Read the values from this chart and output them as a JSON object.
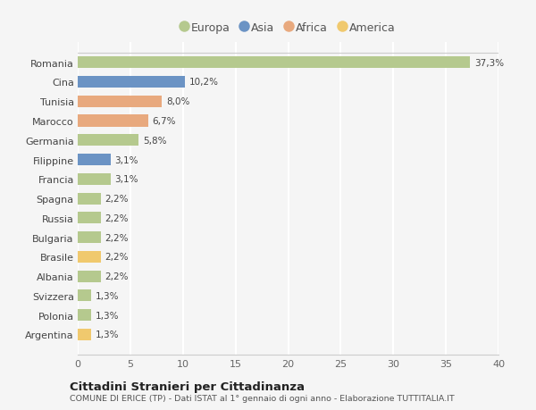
{
  "categories": [
    "Romania",
    "Cina",
    "Tunisia",
    "Marocco",
    "Germania",
    "Filippine",
    "Francia",
    "Spagna",
    "Russia",
    "Bulgaria",
    "Brasile",
    "Albania",
    "Svizzera",
    "Polonia",
    "Argentina"
  ],
  "values": [
    37.3,
    10.2,
    8.0,
    6.7,
    5.8,
    3.1,
    3.1,
    2.2,
    2.2,
    2.2,
    2.2,
    2.2,
    1.3,
    1.3,
    1.3
  ],
  "labels": [
    "37,3%",
    "10,2%",
    "8,0%",
    "6,7%",
    "5,8%",
    "3,1%",
    "3,1%",
    "2,2%",
    "2,2%",
    "2,2%",
    "2,2%",
    "2,2%",
    "1,3%",
    "1,3%",
    "1,3%"
  ],
  "colors": [
    "#b5c98e",
    "#6b93c4",
    "#e8a97e",
    "#e8a97e",
    "#b5c98e",
    "#6b93c4",
    "#b5c98e",
    "#b5c98e",
    "#b5c98e",
    "#b5c98e",
    "#f0c96e",
    "#b5c98e",
    "#b5c98e",
    "#b5c98e",
    "#f0c96e"
  ],
  "legend_labels": [
    "Europa",
    "Asia",
    "Africa",
    "America"
  ],
  "legend_colors": [
    "#b5c98e",
    "#6b93c4",
    "#e8a97e",
    "#f0c96e"
  ],
  "xlim": [
    0,
    40
  ],
  "xticks": [
    0,
    5,
    10,
    15,
    20,
    25,
    30,
    35,
    40
  ],
  "title": "Cittadini Stranieri per Cittadinanza",
  "subtitle": "COMUNE DI ERICE (TP) - Dati ISTAT al 1° gennaio di ogni anno - Elaborazione TUTTITALIA.IT",
  "background_color": "#f5f5f5",
  "grid_color": "#ffffff",
  "bar_height": 0.6
}
